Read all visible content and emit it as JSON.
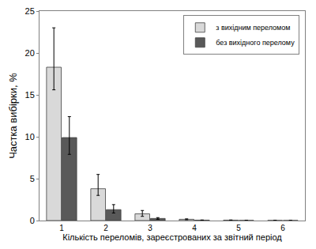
{
  "chart_data": {
    "type": "bar",
    "x_label": "Кількість переломів, зареєстрованих за звітний період",
    "y_label": "Частка вибірки, %",
    "categories": [
      "1",
      "2",
      "3",
      "4",
      "5",
      "6"
    ],
    "series": [
      {
        "name": "з вихідним переломом",
        "color": "#d9d9d9",
        "values": [
          18.3,
          3.8,
          0.8,
          0.15,
          0.05,
          0.02
        ],
        "error_plus": [
          4.7,
          1.7,
          0.4,
          0.05,
          0.02,
          0.01
        ],
        "error_minus": [
          2.7,
          0.8,
          0.3,
          0.05,
          0.02,
          0.01
        ]
      },
      {
        "name": "без вихідного перелому",
        "color": "#595959",
        "values": [
          9.9,
          1.3,
          0.25,
          0.05,
          0.02,
          0.01
        ],
        "error_plus": [
          2.5,
          0.6,
          0.1,
          0.02,
          0.01,
          0.01
        ],
        "error_minus": [
          2.0,
          0.4,
          0.1,
          0.02,
          0.01,
          0.01
        ]
      }
    ],
    "ylim": [
      0,
      25
    ],
    "yticks": [
      0,
      5,
      10,
      15,
      20,
      25
    ],
    "grid": false,
    "legend": "upper right"
  }
}
